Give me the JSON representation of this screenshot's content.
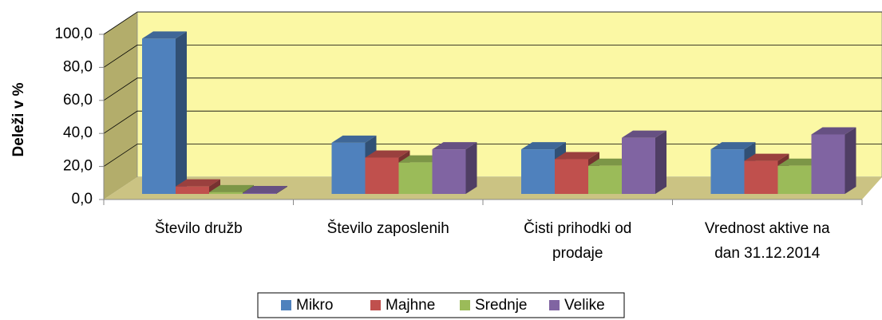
{
  "chart_data": {
    "type": "bar3d",
    "y_label": "Deleži v %",
    "categories": [
      "Število družb",
      "Število zaposlenih",
      "Čisti prihodki od prodaje",
      "Vrednost aktive na dan 31.12.2014"
    ],
    "series": [
      {
        "name": "Mikro",
        "color": "#4f81bd",
        "values": [
          94,
          31,
          27,
          27
        ]
      },
      {
        "name": "Majhne",
        "color": "#c0504d",
        "values": [
          4.5,
          22,
          21,
          20
        ]
      },
      {
        "name": "Srednje",
        "color": "#9bbb59",
        "values": [
          1,
          19,
          17,
          17
        ]
      },
      {
        "name": "Velike",
        "color": "#8064a2",
        "values": [
          0.5,
          27,
          34,
          36
        ]
      }
    ],
    "ylim": [
      0,
      100
    ],
    "yticks": [
      {
        "value": 0,
        "label": "0,0"
      },
      {
        "value": 20,
        "label": "20,0"
      },
      {
        "value": 40,
        "label": "40,0"
      },
      {
        "value": 60,
        "label": "60,0"
      },
      {
        "value": 80,
        "label": "80,0"
      },
      {
        "value": 100,
        "label": "100,0"
      }
    ],
    "grid": true,
    "legend": "bottom"
  }
}
